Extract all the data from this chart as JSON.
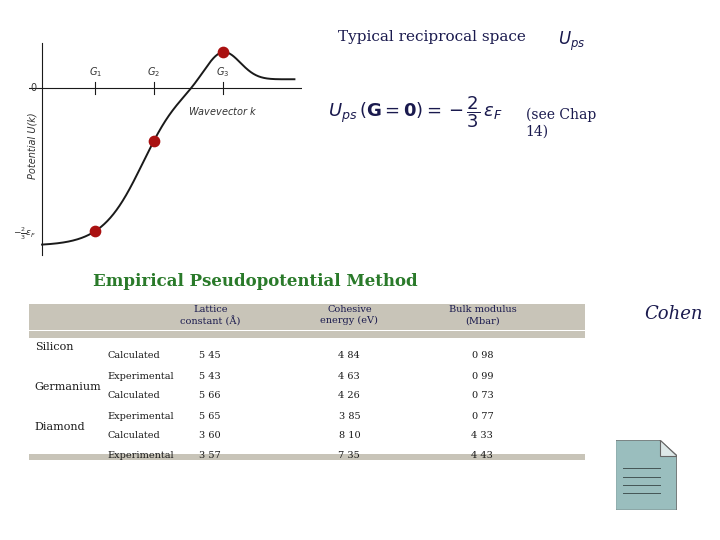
{
  "bg_color": "#ffffff",
  "table_title": "Empirical Pseudopotential Method",
  "cohen_label": "Cohen",
  "col_headers": [
    "Lattice\nconstant (Å)",
    "Cohesive\nenergy (eV)",
    "Bulk modulus\n(Mbar)"
  ],
  "materials": [
    "Silicon",
    "Germanium",
    "Diamond"
  ],
  "rows": {
    "Silicon": {
      "Calculated": [
        "5 45",
        "4 84",
        "0 98"
      ],
      "Experimental": [
        "5 43",
        "4 63",
        "0 99"
      ]
    },
    "Germanium": {
      "Calculated": [
        "5 66",
        "4 26",
        "0 73"
      ],
      "Experimental": [
        "5 65",
        "3 85",
        "0 77"
      ]
    },
    "Diamond": {
      "Calculated": [
        "3 60",
        "8 10",
        "4 33"
      ],
      "Experimental": [
        "3 57",
        "7 35",
        "4 43"
      ]
    }
  },
  "curve_color": "#1a1a1a",
  "dot_color": "#aa1111",
  "axis_label_color": "#333333",
  "table_title_color": "#2a7a2a",
  "header_color": "#1a1a4e",
  "body_color": "#1a1a1a",
  "cohen_color": "#1a1a4e",
  "stripe_color": "#c8c4b8",
  "icon_color": "#9abebe"
}
